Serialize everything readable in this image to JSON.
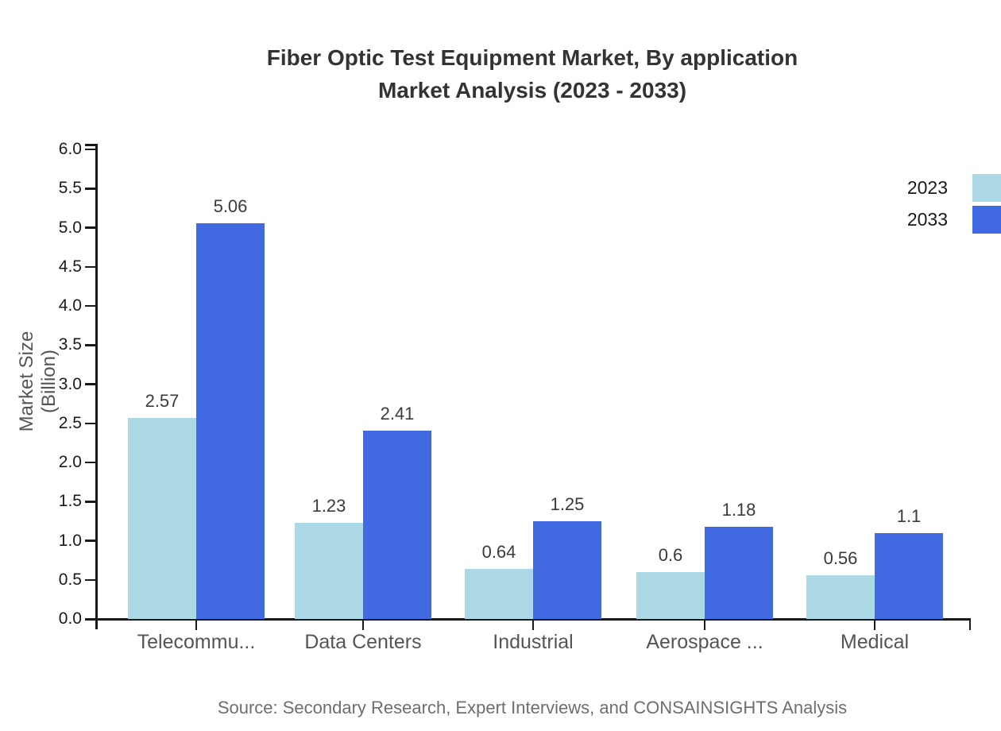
{
  "page": {
    "background": "#ffffff"
  },
  "title": {
    "line1": "Fiber Optic Test Equipment Market, By application",
    "line2": "Market Analysis (2023 - 2033)"
  },
  "legend": {
    "items": [
      {
        "label": "2023",
        "color": "#ADD8E6"
      },
      {
        "label": "2033",
        "color": "#4169E1"
      }
    ]
  },
  "y_axis": {
    "label": "Market Size (Billion)"
  },
  "source_note": "Source: Secondary Research, Expert Interviews, and CONSAINSIGHTS Analysis",
  "chart_data": {
    "type": "bar",
    "title": "Fiber Optic Test Equipment Market, By application Market Analysis (2023 - 2033)",
    "categories": [
      "Telecommu...",
      "Data Centers",
      "Industrial",
      "Aerospace ...",
      "Medical"
    ],
    "series": [
      {
        "name": "2023",
        "color": "#ADD8E6",
        "values": [
          2.57,
          1.23,
          0.64,
          0.6,
          0.56
        ],
        "labels": [
          "2.57",
          "1.23",
          "0.64",
          "0.6",
          "0.56"
        ]
      },
      {
        "name": "2033",
        "color": "#4169E1",
        "values": [
          5.06,
          2.41,
          1.25,
          1.18,
          1.1
        ],
        "labels": [
          "5.06",
          "2.41",
          "1.25",
          "1.18",
          "1.1"
        ]
      }
    ],
    "xlabel": "",
    "ylabel": "Market Size (Billion)",
    "ylim": [
      0,
      6
    ],
    "yticks": [
      "0.0",
      "0.5",
      "1.0",
      "1.5",
      "2.0",
      "2.5",
      "3.0",
      "3.5",
      "4.0",
      "4.5",
      "5.0",
      "5.5",
      "6.0"
    ],
    "grid": false,
    "legend_position": "top-right",
    "value_labels": true,
    "bar_value_label_color": "#3a3a3a",
    "axis_color": "#1a1a1a",
    "category_label_color": "#555555",
    "source": "Source: Secondary Research, Expert Interviews, and CONSAINSIGHTS Analysis"
  }
}
